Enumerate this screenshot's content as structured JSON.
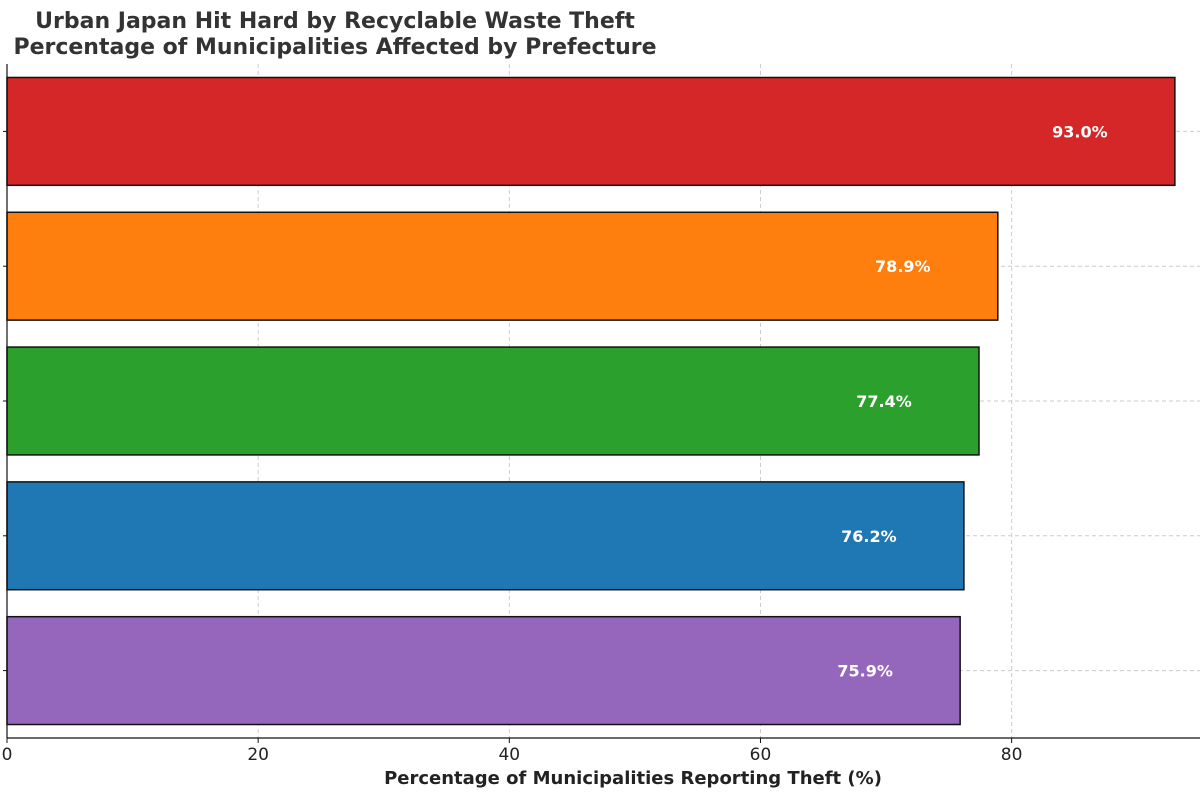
{
  "chart_data": {
    "type": "bar",
    "orientation": "horizontal",
    "title": "Urban Japan Hit Hard by Recyclable Waste Theft",
    "subtitle": "Percentage of Municipalities Affected by Prefecture",
    "xlabel": "Percentage of Municipalities Reporting Theft (%)",
    "ylabel": "",
    "xlim": [
      0,
      95
    ],
    "xticks": [
      0,
      20,
      40,
      60,
      80
    ],
    "grid": true,
    "legend": "none",
    "data_label_format": "{value}%",
    "bars": [
      {
        "value": 93.0,
        "label": "93.0%",
        "color": "#d62728"
      },
      {
        "value": 78.9,
        "label": "78.9%",
        "color": "#ff7f0e"
      },
      {
        "value": 77.4,
        "label": "77.4%",
        "color": "#2ca02c"
      },
      {
        "value": 76.2,
        "label": "76.2%",
        "color": "#1f77b4"
      },
      {
        "value": 75.9,
        "label": "75.9%",
        "color": "#9467bd"
      }
    ]
  }
}
